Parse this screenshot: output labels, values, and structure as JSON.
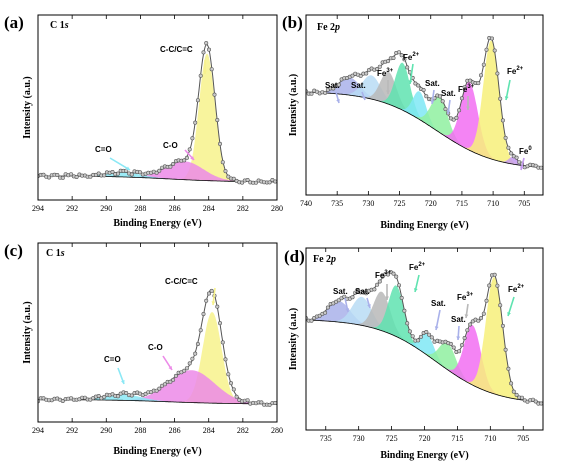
{
  "chart_data": [
    {
      "type": "area",
      "panel": "(a)",
      "title_main": "C 1",
      "title_sub": "s",
      "xlabel": "Binding Energy (eV)",
      "ylabel": "Intensity (a.u.)",
      "xlim": [
        294,
        280
      ],
      "ticks": [
        294,
        292,
        290,
        288,
        286,
        284,
        282,
        280
      ],
      "annotations": [
        {
          "text": "C-C/C=C",
          "x": 284.3
        },
        {
          "text": "C-O",
          "x": 285.9
        },
        {
          "text": "C=O",
          "x": 289.2
        }
      ],
      "peaks": [
        {
          "name": "C-C/C=C",
          "center": 284.1,
          "height": 0.83,
          "fwhm": 1.1,
          "color": "#f7f28c"
        },
        {
          "name": "C-O",
          "center": 285.4,
          "height": 0.12,
          "fwhm": 2.6,
          "color": "#ec8ae8"
        },
        {
          "name": "C=O",
          "center": 289.0,
          "height": 0.03,
          "fwhm": 2.5,
          "color": "#8be8f5"
        }
      ],
      "background": {
        "left": 0.04,
        "right": 0.0
      }
    },
    {
      "type": "area",
      "panel": "(b)",
      "title_main": "Fe 2",
      "title_sub": "p",
      "xlabel": "Binding Energy (eV)",
      "ylabel": "Intensity (a.u.)",
      "xlim": [
        740,
        702
      ],
      "ticks": [
        740,
        735,
        730,
        725,
        720,
        715,
        710,
        705
      ],
      "annotations": [
        {
          "text": "Sat.",
          "sup": "",
          "x": 735.3
        },
        {
          "text": "Sat.",
          "sup": "",
          "x": 731.4
        },
        {
          "text": "Fe",
          "sup": "3+",
          "x": 727.6
        },
        {
          "text": "Fe",
          "sup": "2+",
          "x": 724.3
        },
        {
          "text": "Sat.",
          "sup": "",
          "x": 721.2
        },
        {
          "text": "Sat.",
          "sup": "",
          "x": 718.0
        },
        {
          "text": "Fe",
          "sup": "3+",
          "x": 714.5
        },
        {
          "text": "Fe",
          "sup": "2+",
          "x": 708.8
        },
        {
          "text": "Fe",
          "sup": "0",
          "x": 705.5
        }
      ],
      "peaks": [
        {
          "name": "Sat.",
          "center": 733.0,
          "height": 0.12,
          "fwhm": 4.0,
          "color": "#a9b1ea"
        },
        {
          "name": "Sat.",
          "center": 729.5,
          "height": 0.16,
          "fwhm": 3.5,
          "color": "#b9dcf5"
        },
        {
          "name": "Fe3+",
          "center": 726.8,
          "height": 0.22,
          "fwhm": 3.0,
          "color": "#b9b9b9"
        },
        {
          "name": "Fe2+",
          "center": 724.5,
          "height": 0.32,
          "fwhm": 2.8,
          "color": "#5fe3b0"
        },
        {
          "name": "Sat.",
          "center": 721.8,
          "height": 0.19,
          "fwhm": 2.5,
          "color": "#7fe8f5"
        },
        {
          "name": "Sat.",
          "center": 718.6,
          "height": 0.24,
          "fwhm": 3.2,
          "color": "#8ff0a0"
        },
        {
          "name": "Fe3+",
          "center": 713.8,
          "height": 0.46,
          "fwhm": 3.2,
          "color": "#f26ef2"
        },
        {
          "name": "Fe2+",
          "center": 710.3,
          "height": 0.8,
          "fwhm": 3.0,
          "color": "#f7f07a"
        },
        {
          "name": "Fe0",
          "center": 706.8,
          "height": 0.05,
          "fwhm": 1.6,
          "color": "#c49af0"
        }
      ],
      "background": {
        "left": 0.58,
        "right": 0.05
      }
    },
    {
      "type": "area",
      "panel": "(c)",
      "title_main": "C 1",
      "title_sub": "s",
      "xlabel": "Binding Energy (eV)",
      "ylabel": "Intensity (a.u.)",
      "xlim": [
        294,
        280
      ],
      "ticks": [
        294,
        292,
        290,
        288,
        286,
        284,
        282,
        280
      ],
      "annotations": [
        {
          "text": "C-C/C=C",
          "x": 284.3
        },
        {
          "text": "C-O",
          "x": 286.7
        },
        {
          "text": "C=O",
          "x": 289.2
        }
      ],
      "peaks": [
        {
          "name": "C-C/C=C",
          "center": 283.8,
          "height": 0.62,
          "fwhm": 1.3,
          "color": "#f7f28c"
        },
        {
          "name": "C-O",
          "center": 285.0,
          "height": 0.22,
          "fwhm": 3.2,
          "color": "#ec8ae8"
        },
        {
          "name": "C=O",
          "center": 289.0,
          "height": 0.04,
          "fwhm": 2.5,
          "color": "#8be8f5"
        }
      ],
      "background": {
        "left": 0.03,
        "right": 0.0
      }
    },
    {
      "type": "area",
      "panel": "(d)",
      "title_main": "Fe 2",
      "title_sub": "p",
      "xlabel": "Binding Energy (eV)",
      "ylabel": "Intensity (a.u.)",
      "xlim": [
        738,
        702
      ],
      "ticks": [
        735,
        730,
        725,
        720,
        715,
        710,
        705
      ],
      "annotations": [
        {
          "text": "Sat.",
          "sup": "",
          "x": 733.0
        },
        {
          "text": "Sat.",
          "sup": "",
          "x": 729.6
        },
        {
          "text": "Fe",
          "sup": "3+",
          "x": 727.1
        },
        {
          "text": "Fe",
          "sup": "2+",
          "x": 724.3
        },
        {
          "text": "Sat.",
          "sup": "",
          "x": 719.3
        },
        {
          "text": "Sat.",
          "sup": "",
          "x": 715.9
        },
        {
          "text": "Fe",
          "sup": "3+",
          "x": 713.5
        },
        {
          "text": "Fe",
          "sup": "2+",
          "x": 708.3
        }
      ],
      "peaks": [
        {
          "name": "Sat.",
          "center": 733.0,
          "height": 0.14,
          "fwhm": 4.0,
          "color": "#a9b1ea"
        },
        {
          "name": "Sat.",
          "center": 729.5,
          "height": 0.19,
          "fwhm": 3.5,
          "color": "#b9dcf5"
        },
        {
          "name": "Fe3+",
          "center": 726.5,
          "height": 0.26,
          "fwhm": 3.0,
          "color": "#b9b9b9"
        },
        {
          "name": "Fe2+",
          "center": 724.3,
          "height": 0.34,
          "fwhm": 2.8,
          "color": "#5fe3b0"
        },
        {
          "name": "Sat.",
          "center": 719.6,
          "height": 0.14,
          "fwhm": 2.5,
          "color": "#7fe8f5"
        },
        {
          "name": "Sat.",
          "center": 716.5,
          "height": 0.18,
          "fwhm": 3.0,
          "color": "#8ff0a0"
        },
        {
          "name": "Fe3+",
          "center": 712.7,
          "height": 0.4,
          "fwhm": 3.0,
          "color": "#f26ef2"
        },
        {
          "name": "Fe2+",
          "center": 709.4,
          "height": 0.78,
          "fwhm": 3.0,
          "color": "#f7f07a"
        }
      ],
      "background": {
        "left": 0.62,
        "right": 0.05
      }
    }
  ]
}
